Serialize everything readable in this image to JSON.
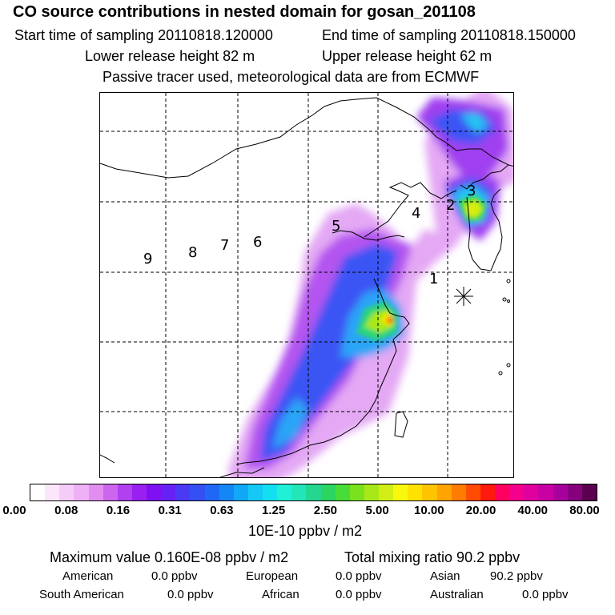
{
  "header": {
    "title": "CO  source contributions in nested domain for gosan_201108",
    "start_time": "Start time of sampling 20110818.120000",
    "end_time": "End time of sampling 20110818.150000",
    "lower_release": "Lower release height   82 m",
    "upper_release": "Upper release height   62 m",
    "tracer_note": "Passive tracer used, meteorological data are from ECMWF"
  },
  "map": {
    "region_labels": [
      "1",
      "2",
      "3",
      "4",
      "5",
      "6",
      "7",
      "8",
      "9"
    ],
    "receptor_marker": "gosan-receptor-icon"
  },
  "colorbar": {
    "colors": [
      "#ffffff",
      "#fbe6fb",
      "#f5ccf7",
      "#efb0f6",
      "#e28ef0",
      "#cc66ee",
      "#b040f0",
      "#9a20f0",
      "#7f10f2",
      "#6622f2",
      "#4a3af4",
      "#3450f4",
      "#1f68f6",
      "#1486f6",
      "#12a8f7",
      "#16c8f6",
      "#12e0f0",
      "#1ff0d6",
      "#22e6b8",
      "#24d690",
      "#2cd460",
      "#48dc38",
      "#7ae21c",
      "#a8e818",
      "#d2ee14",
      "#f8f80c",
      "#ffe200",
      "#ffc400",
      "#ffa400",
      "#ff7c00",
      "#ff4c00",
      "#ff1a10",
      "#ff0060",
      "#f4008c",
      "#e000a0",
      "#c800a4",
      "#a8009c",
      "#86007e",
      "#5a004e"
    ],
    "tick_labels": [
      "0.00",
      "0.08",
      "0.16",
      "0.31",
      "0.63",
      "1.25",
      "2.50",
      "5.00",
      "10.00",
      "20.00",
      "40.00",
      "80.00"
    ],
    "units": "10E-10 ppbv / m2"
  },
  "summary": {
    "max_value": "Maximum value  0.160E-08 ppbv / m2",
    "total_mixing": "Total mixing ratio       90.2 ppbv",
    "regions": [
      {
        "name": "American",
        "value": "0.0 ppbv"
      },
      {
        "name": "European",
        "value": "0.0 ppbv"
      },
      {
        "name": "Asian",
        "value": "90.2 ppbv"
      },
      {
        "name": "South American",
        "value": "0.0 ppbv"
      },
      {
        "name": "African",
        "value": "0.0 ppbv"
      },
      {
        "name": "Australian",
        "value": "0.0 ppbv"
      }
    ]
  }
}
